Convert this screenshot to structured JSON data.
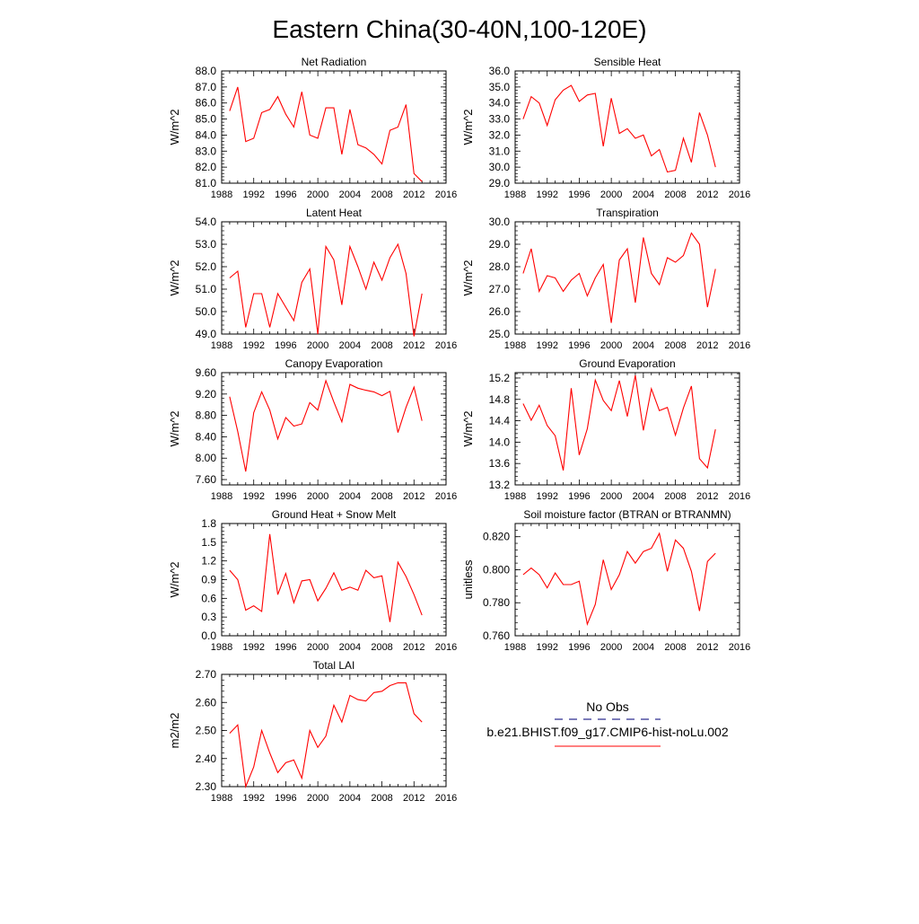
{
  "title": "Eastern China(30-40N,100-120E)",
  "colors": {
    "model": "#ff0000",
    "obs": "#2f2f8f",
    "axis": "#000000"
  },
  "legend": {
    "entries": [
      {
        "label": "No Obs",
        "style": "dashed",
        "color": "#2f2f8f"
      },
      {
        "label": "b.e21.BHIST.f09_g17.CMIP6-hist-noLu.002",
        "style": "solid",
        "color": "#ff0000"
      }
    ]
  },
  "chart_data": [
    {
      "type": "line",
      "title": "Net Radiation",
      "ylabel": "W/m^2",
      "xlim": [
        1988,
        2016
      ],
      "xticks": [
        1988,
        1992,
        1996,
        2000,
        2004,
        2008,
        2012,
        2016
      ],
      "ylim": [
        81,
        88
      ],
      "yticks": [
        "81.0",
        "82.0",
        "83.0",
        "84.0",
        "85.0",
        "86.0",
        "87.0",
        "88.0"
      ],
      "ydecimals": 1,
      "x": [
        1989,
        1990,
        1991,
        1992,
        1993,
        1994,
        1995,
        1996,
        1997,
        1998,
        1999,
        2000,
        2001,
        2002,
        2003,
        2004,
        2005,
        2006,
        2007,
        2008,
        2009,
        2010,
        2011,
        2012,
        2013
      ],
      "series": [
        {
          "values": [
            85.5,
            87.0,
            83.6,
            83.8,
            85.4,
            85.6,
            86.4,
            85.3,
            84.5,
            86.7,
            84.0,
            83.8,
            85.7,
            85.7,
            82.8,
            85.6,
            83.4,
            83.2,
            82.8,
            82.2,
            84.3,
            84.5,
            85.9,
            81.6,
            81.1
          ]
        }
      ]
    },
    {
      "type": "line",
      "title": "Sensible Heat",
      "ylabel": "W/m^2",
      "xlim": [
        1988,
        2016
      ],
      "xticks": [
        1988,
        1992,
        1996,
        2000,
        2004,
        2008,
        2012,
        2016
      ],
      "ylim": [
        29,
        36
      ],
      "yticks": [
        "29.0",
        "30.0",
        "31.0",
        "32.0",
        "33.0",
        "34.0",
        "35.0",
        "36.0"
      ],
      "ydecimals": 1,
      "x": [
        1989,
        1990,
        1991,
        1992,
        1993,
        1994,
        1995,
        1996,
        1997,
        1998,
        1999,
        2000,
        2001,
        2002,
        2003,
        2004,
        2005,
        2006,
        2007,
        2008,
        2009,
        2010,
        2011,
        2012,
        2013
      ],
      "series": [
        {
          "values": [
            33.0,
            34.4,
            34.0,
            32.6,
            34.2,
            34.8,
            35.1,
            34.1,
            34.5,
            34.6,
            31.3,
            34.3,
            32.1,
            32.4,
            31.8,
            32.0,
            30.7,
            31.1,
            29.7,
            29.8,
            31.8,
            30.3,
            33.4,
            32.0,
            30.0
          ]
        }
      ]
    },
    {
      "type": "line",
      "title": "Latent Heat",
      "ylabel": "W/m^2",
      "xlim": [
        1988,
        2016
      ],
      "xticks": [
        1988,
        1992,
        1996,
        2000,
        2004,
        2008,
        2012,
        2016
      ],
      "ylim": [
        49,
        54
      ],
      "yticks": [
        "49.0",
        "50.0",
        "51.0",
        "52.0",
        "53.0",
        "54.0"
      ],
      "ydecimals": 1,
      "x": [
        1989,
        1990,
        1991,
        1992,
        1993,
        1994,
        1995,
        1996,
        1997,
        1998,
        1999,
        2000,
        2001,
        2002,
        2003,
        2004,
        2005,
        2006,
        2007,
        2008,
        2009,
        2010,
        2011,
        2012,
        2013
      ],
      "series": [
        {
          "values": [
            51.5,
            51.8,
            49.3,
            50.8,
            50.8,
            49.3,
            50.8,
            50.2,
            49.6,
            51.3,
            51.9,
            49.0,
            52.9,
            52.3,
            50.3,
            52.9,
            52.0,
            51.0,
            52.2,
            51.4,
            52.4,
            53.0,
            51.7,
            48.9,
            50.8
          ]
        }
      ]
    },
    {
      "type": "line",
      "title": "Transpiration",
      "ylabel": "W/m^2",
      "xlim": [
        1988,
        2016
      ],
      "xticks": [
        1988,
        1992,
        1996,
        2000,
        2004,
        2008,
        2012,
        2016
      ],
      "ylim": [
        25,
        30
      ],
      "yticks": [
        "25.0",
        "26.0",
        "27.0",
        "28.0",
        "29.0",
        "30.0"
      ],
      "ydecimals": 1,
      "x": [
        1989,
        1990,
        1991,
        1992,
        1993,
        1994,
        1995,
        1996,
        1997,
        1998,
        1999,
        2000,
        2001,
        2002,
        2003,
        2004,
        2005,
        2006,
        2007,
        2008,
        2009,
        2010,
        2011,
        2012,
        2013
      ],
      "series": [
        {
          "values": [
            27.7,
            28.8,
            26.9,
            27.6,
            27.5,
            26.9,
            27.4,
            27.7,
            26.7,
            27.5,
            28.1,
            25.5,
            28.3,
            28.8,
            26.4,
            29.3,
            27.7,
            27.2,
            28.4,
            28.2,
            28.5,
            29.5,
            29.0,
            26.2,
            27.9
          ]
        }
      ]
    },
    {
      "type": "line",
      "title": "Canopy Evaporation",
      "ylabel": "W/m^2",
      "xlim": [
        1988,
        2016
      ],
      "xticks": [
        1988,
        1992,
        1996,
        2000,
        2004,
        2008,
        2012,
        2016
      ],
      "ylim": [
        7.5,
        9.6
      ],
      "yticks": [
        "7.60",
        "8.00",
        "8.40",
        "8.80",
        "9.20",
        "9.60"
      ],
      "ydecimals": 2,
      "x": [
        1989,
        1990,
        1991,
        1992,
        1993,
        1994,
        1995,
        1996,
        1997,
        1998,
        1999,
        2000,
        2001,
        2002,
        2003,
        2004,
        2005,
        2006,
        2007,
        2008,
        2009,
        2010,
        2011,
        2012,
        2013
      ],
      "series": [
        {
          "values": [
            9.15,
            8.5,
            7.75,
            8.85,
            9.24,
            8.9,
            8.36,
            8.76,
            8.6,
            8.64,
            9.04,
            8.9,
            9.45,
            9.05,
            8.68,
            9.38,
            9.31,
            9.27,
            9.24,
            9.17,
            9.25,
            8.48,
            8.95,
            9.33,
            8.7
          ]
        }
      ]
    },
    {
      "type": "line",
      "title": "Ground Evaporation",
      "ylabel": "W/m^2",
      "xlim": [
        1988,
        2016
      ],
      "xticks": [
        1988,
        1992,
        1996,
        2000,
        2004,
        2008,
        2012,
        2016
      ],
      "ylim": [
        13.2,
        15.3
      ],
      "yticks": [
        "13.2",
        "13.6",
        "14.0",
        "14.4",
        "14.8",
        "15.2"
      ],
      "ydecimals": 1,
      "x": [
        1989,
        1990,
        1991,
        1992,
        1993,
        1994,
        1995,
        1996,
        1997,
        1998,
        1999,
        2000,
        2001,
        2002,
        2003,
        2004,
        2005,
        2006,
        2007,
        2008,
        2009,
        2010,
        2011,
        2012,
        2013
      ],
      "series": [
        {
          "values": [
            14.72,
            14.41,
            14.69,
            14.31,
            14.12,
            13.47,
            15.01,
            13.76,
            14.25,
            15.16,
            14.78,
            14.59,
            15.15,
            14.48,
            15.25,
            14.22,
            15.0,
            14.59,
            14.65,
            14.13,
            14.64,
            15.05,
            13.69,
            13.52,
            14.24
          ]
        }
      ]
    },
    {
      "type": "line",
      "title": "Ground Heat + Snow Melt",
      "ylabel": "W/m^2",
      "xlim": [
        1988,
        2016
      ],
      "xticks": [
        1988,
        1992,
        1996,
        2000,
        2004,
        2008,
        2012,
        2016
      ],
      "ylim": [
        0,
        1.8
      ],
      "yticks": [
        "0.0",
        "0.3",
        "0.6",
        "0.9",
        "1.2",
        "1.5",
        "1.8"
      ],
      "ydecimals": 1,
      "x": [
        1989,
        1990,
        1991,
        1992,
        1993,
        1994,
        1995,
        1996,
        1997,
        1998,
        1999,
        2000,
        2001,
        2002,
        2003,
        2004,
        2005,
        2006,
        2007,
        2008,
        2009,
        2010,
        2011,
        2012,
        2013
      ],
      "series": [
        {
          "values": [
            1.05,
            0.9,
            0.41,
            0.48,
            0.39,
            1.63,
            0.66,
            1.0,
            0.53,
            0.88,
            0.9,
            0.56,
            0.76,
            1.01,
            0.73,
            0.78,
            0.73,
            1.05,
            0.93,
            0.96,
            0.22,
            1.18,
            0.95,
            0.66,
            0.33
          ]
        }
      ]
    },
    {
      "type": "line",
      "title": "Soil moisture factor (BTRAN or BTRANMN)",
      "ylabel": "unitless",
      "xlim": [
        1988,
        2016
      ],
      "xticks": [
        1988,
        1992,
        1996,
        2000,
        2004,
        2008,
        2012,
        2016
      ],
      "ylim": [
        0.76,
        0.828
      ],
      "yticks": [
        "0.760",
        "0.780",
        "0.800",
        "0.820"
      ],
      "ydecimals": 3,
      "x": [
        1989,
        1990,
        1991,
        1992,
        1993,
        1994,
        1995,
        1996,
        1997,
        1998,
        1999,
        2000,
        2001,
        2002,
        2003,
        2004,
        2005,
        2006,
        2007,
        2008,
        2009,
        2010,
        2011,
        2012,
        2013
      ],
      "series": [
        {
          "values": [
            0.797,
            0.801,
            0.797,
            0.789,
            0.798,
            0.791,
            0.791,
            0.793,
            0.767,
            0.779,
            0.806,
            0.788,
            0.797,
            0.811,
            0.804,
            0.811,
            0.813,
            0.822,
            0.799,
            0.818,
            0.813,
            0.799,
            0.775,
            0.805,
            0.81
          ]
        }
      ]
    },
    {
      "type": "line",
      "title": "Total LAI",
      "ylabel": "m2/m2",
      "xlim": [
        1988,
        2016
      ],
      "xticks": [
        1988,
        1992,
        1996,
        2000,
        2004,
        2008,
        2012,
        2016
      ],
      "ylim": [
        2.3,
        2.7
      ],
      "yticks": [
        "2.30",
        "2.40",
        "2.50",
        "2.60",
        "2.70"
      ],
      "ydecimals": 2,
      "x": [
        1989,
        1990,
        1991,
        1992,
        1993,
        1994,
        1995,
        1996,
        1997,
        1998,
        1999,
        2000,
        2001,
        2002,
        2003,
        2004,
        2005,
        2006,
        2007,
        2008,
        2009,
        2010,
        2011,
        2012,
        2013
      ],
      "series": [
        {
          "values": [
            2.49,
            2.52,
            2.3,
            2.37,
            2.5,
            2.42,
            2.35,
            2.385,
            2.395,
            2.33,
            2.5,
            2.44,
            2.48,
            2.59,
            2.53,
            2.625,
            2.61,
            2.605,
            2.635,
            2.64,
            2.66,
            2.67,
            2.67,
            2.56,
            2.53
          ]
        }
      ]
    }
  ]
}
